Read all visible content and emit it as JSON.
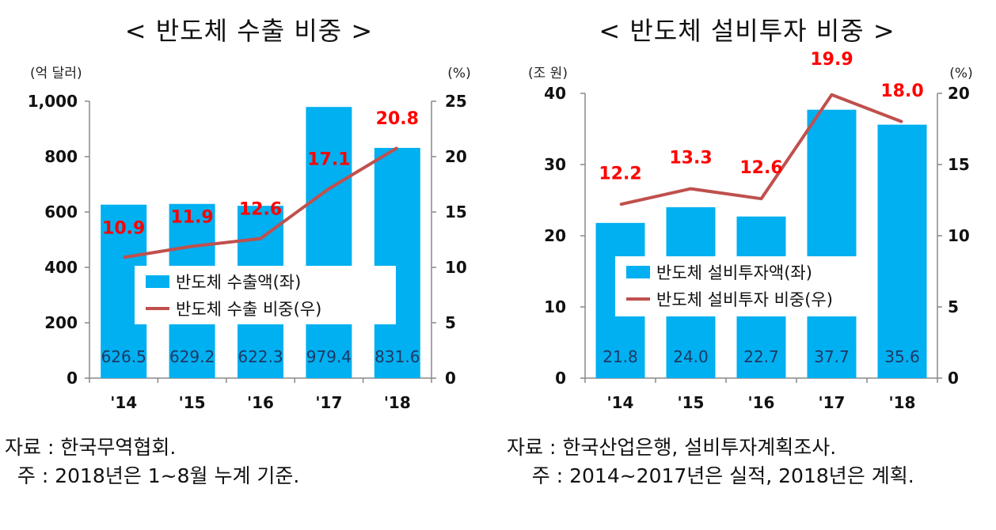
{
  "chart_data": [
    {
      "type": "bar",
      "title": "< 반도체 수출 비중 >",
      "ylabel_left": "(억 달러)",
      "ylabel_right": "(%)",
      "categories": [
        "'14",
        "'15",
        "'16",
        "'17",
        "'18"
      ],
      "left_ticks": [
        "0",
        "200",
        "400",
        "600",
        "800",
        "1,000"
      ],
      "right_ticks": [
        "0",
        "5",
        "10",
        "15",
        "20",
        "25"
      ],
      "ylim_left": [
        0,
        1000
      ],
      "ylim_right": [
        0,
        25
      ],
      "series": [
        {
          "name": "반도체 수출액(좌)",
          "kind": "bar",
          "axis": "left",
          "color": "#00B0F0",
          "values": [
            626.5,
            629.2,
            622.3,
            979.4,
            831.6
          ],
          "labels": [
            "626.5",
            "629.2",
            "622.3",
            "979.4",
            "831.6"
          ]
        },
        {
          "name": "반도체 수출 비중(우)",
          "kind": "line",
          "axis": "right",
          "color": "#C0504D",
          "values": [
            10.9,
            11.9,
            12.6,
            17.1,
            20.8
          ],
          "labels": [
            "10.9",
            "11.9",
            "12.6",
            "17.1",
            "20.8"
          ]
        }
      ],
      "label_color": "#FF0000",
      "bar_label_color": "#1F3864",
      "legend_position": "center"
    },
    {
      "type": "bar",
      "title": "< 반도체 설비투자 비중 >",
      "ylabel_left": "(조 원)",
      "ylabel_right": "(%)",
      "categories": [
        "'14",
        "'15",
        "'16",
        "'17",
        "'18"
      ],
      "left_ticks": [
        "0",
        "10",
        "20",
        "30",
        "40"
      ],
      "right_ticks": [
        "0",
        "5",
        "10",
        "15",
        "20"
      ],
      "ylim_left": [
        0,
        40
      ],
      "ylim_right": [
        0,
        20
      ],
      "series": [
        {
          "name": "반도체 설비투자액(좌)",
          "kind": "bar",
          "axis": "left",
          "color": "#00B0F0",
          "values": [
            21.8,
            24.0,
            22.7,
            37.7,
            35.6
          ],
          "labels": [
            "21.8",
            "24.0",
            "22.7",
            "37.7",
            "35.6"
          ]
        },
        {
          "name": "반도체 설비투자 비중(우)",
          "kind": "line",
          "axis": "right",
          "color": "#C0504D",
          "values": [
            12.2,
            13.3,
            12.6,
            19.9,
            18.0
          ],
          "labels": [
            "12.2",
            "13.3",
            "12.6",
            "19.9",
            "18.0"
          ]
        }
      ],
      "label_color": "#FF0000",
      "bar_label_color": "#1F3864",
      "legend_position": "center"
    }
  ],
  "notes_left": {
    "source": "자료 : 한국무역협회.",
    "note": "  주 : 2018년은 1~8월 누계 기준."
  },
  "notes_right": {
    "source": "자료 : 한국산업은행, 설비투자계획조사.",
    "note": "    주 : 2014~2017년은 실적, 2018년은 계획."
  }
}
